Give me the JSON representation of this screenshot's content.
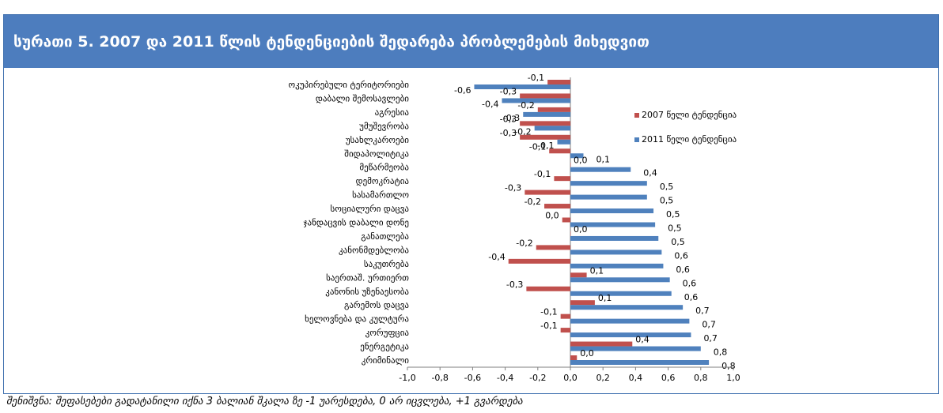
{
  "title": "სურათი 5. 2007 და 2011 წლის ტენდენციების შედარება პრობლემების მიხედვით",
  "note": "შენიშვნა: შეფასებები გადატანილი იქნა 3 ბალიან შკალა ზე -1 უარესდება, 0 არ იცვლება, +1 გვარდება",
  "colors": {
    "header": "#4d7dbe",
    "series_2007": "#c0504d",
    "series_2011": "#4f81bd"
  },
  "chart_data": {
    "type": "bar",
    "orientation": "horizontal",
    "categories": [
      "ოკუპირებული ტერიტორიები",
      "დაბალი შემოსავლები",
      "აგრესია",
      "უმუშევრობა",
      "უსახლკაროები",
      "შიდაპოლიტიკა",
      "მეწარმეობა",
      "დემოკრატია",
      "სასამართლო",
      "სოციალური დაცვა",
      "ჯანდაცვის დაბალი დონე",
      "განათლება",
      "კანონმდებლობა",
      "საკუთრება",
      "საერთაშ. ურთიერთ",
      "კანონის უზენაესობა",
      "გარემოს დაცვა",
      "ხელოვნება და კულტურა",
      "კორუფცია",
      "ენერგეტიკა",
      "კრიმინალი"
    ],
    "series": [
      {
        "name": "2007 წელი ტენდენცია",
        "values": [
          -0.14,
          -0.31,
          -0.2,
          -0.31,
          -0.31,
          -0.13,
          0.0,
          -0.1,
          -0.28,
          -0.16,
          -0.05,
          0.0,
          -0.21,
          -0.38,
          0.1,
          -0.27,
          0.15,
          -0.06,
          -0.06,
          0.38,
          0.04
        ],
        "labels": [
          "-0,1",
          "-0,3",
          "-0,2",
          "-0,3",
          "-0,3",
          "-0,1",
          "0,0",
          "-0,1",
          "-0,3",
          "-0,2",
          "0,0",
          "0,0",
          "-0,2",
          "-0,4",
          "0,1",
          "-0,3",
          "0,1",
          "-0,1",
          "-0,1",
          "0,4",
          "0,0"
        ]
      },
      {
        "name": "2011 წელი ტენდენცია",
        "values": [
          -0.59,
          -0.42,
          -0.29,
          -0.22,
          -0.08,
          0.08,
          0.37,
          0.47,
          0.47,
          0.51,
          0.52,
          0.54,
          0.56,
          0.57,
          0.61,
          0.62,
          0.69,
          0.73,
          0.74,
          0.8,
          0.85
        ],
        "labels": [
          "-0,6",
          "-0,4",
          "-0,3",
          "-0,2",
          "-0,1",
          "0,1",
          "0,4",
          "0,5",
          "0,5",
          "0,5",
          "0,5",
          "0,5",
          "0,6",
          "0,6",
          "0,6",
          "0,6",
          "0,7",
          "0,7",
          "0,7",
          "0,8",
          "0,8"
        ]
      }
    ],
    "x_ticks": [
      "-1,0",
      "-0,8",
      "-0,6",
      "-0,4",
      "-0,2",
      "0,0",
      "0,2",
      "0,4",
      "0,6",
      "0,8",
      "1,0"
    ],
    "xlim": [
      -1.0,
      1.0
    ],
    "grid": false,
    "legend_position": "right"
  }
}
